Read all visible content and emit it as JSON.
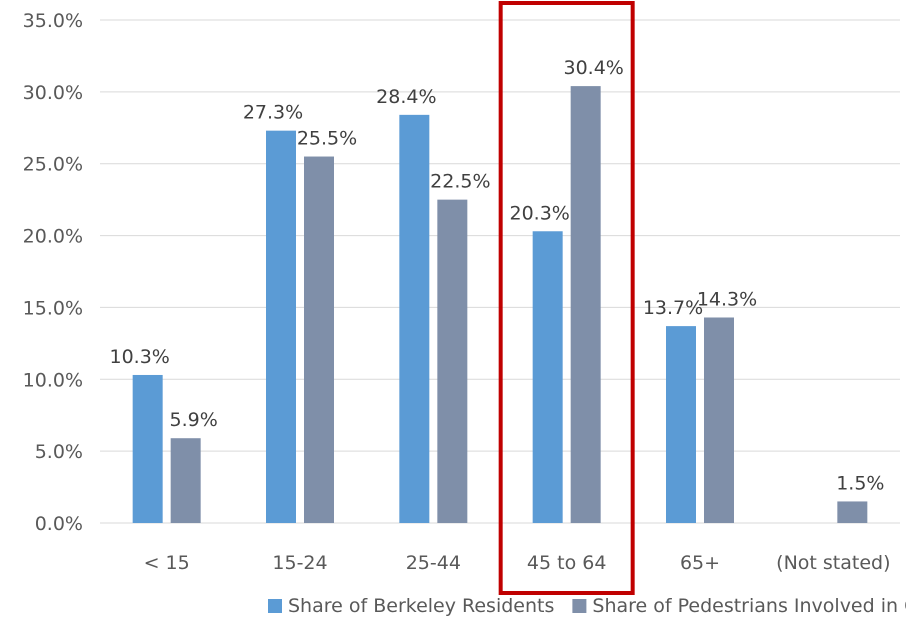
{
  "chart_data": {
    "type": "bar",
    "categories": [
      "< 15",
      "15-24",
      "25-44",
      "45 to 64",
      "65+",
      "(Not stated)"
    ],
    "series": [
      {
        "name": "Share of Berkeley Residents",
        "values": [
          10.3,
          27.3,
          28.4,
          20.3,
          13.7,
          null
        ],
        "labels": [
          "10.3%",
          "27.3%",
          "28.4%",
          "20.3%",
          "13.7%",
          null
        ],
        "color": "#5b9bd5"
      },
      {
        "name": "Share of Pedestrians Involved in Collisions",
        "values": [
          5.9,
          25.5,
          22.5,
          30.4,
          14.3,
          1.5
        ],
        "labels": [
          "5.9%",
          "25.5%",
          "22.5%",
          "30.4%",
          "14.3%",
          "1.5%"
        ],
        "color": "#7f8fa9"
      }
    ],
    "y_ticks": [
      "0.0%",
      "5.0%",
      "10.0%",
      "15.0%",
      "20.0%",
      "25.0%",
      "30.0%",
      "35.0%"
    ],
    "ylim": [
      0,
      35
    ],
    "grid": true,
    "legend_position": "bottom",
    "highlight": {
      "category": "45 to 64",
      "color": "#c00000"
    },
    "gridline_color": "#d9d9d9"
  }
}
